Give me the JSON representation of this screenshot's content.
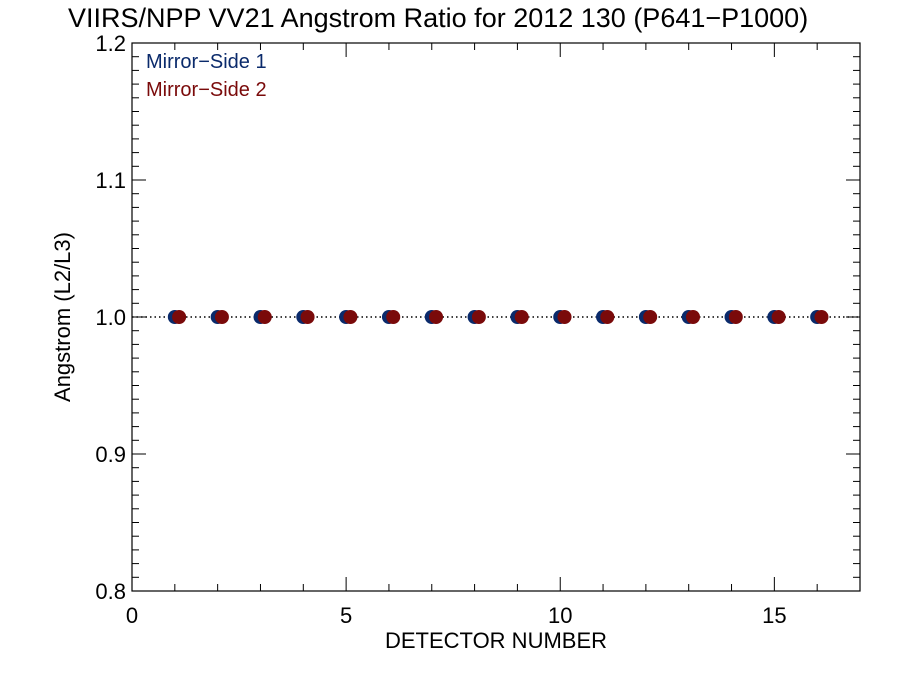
{
  "chart_data": {
    "type": "scatter",
    "title": "VIIRS/NPP VV21 Angstrom Ratio for 2012 130 (P641−P1000)",
    "xlabel": "DETECTOR NUMBER",
    "ylabel": "Angstrom (L2/L3)",
    "xlim": [
      0,
      17
    ],
    "ylim": [
      0.8,
      1.2
    ],
    "x_ticks": [
      0,
      5,
      10,
      15
    ],
    "x_tick_labels": [
      "0",
      "5",
      "10",
      "15"
    ],
    "y_ticks": [
      0.8,
      0.9,
      1.0,
      1.1,
      1.2
    ],
    "y_tick_labels": [
      "0.8",
      "0.9",
      "1.0",
      "1.1",
      "1.2"
    ],
    "reference_line": {
      "y": 1.0,
      "style": "dotted"
    },
    "legend_position": "top-left",
    "series": [
      {
        "name": "Mirror−Side 1",
        "color": "#0a2a6b",
        "x": [
          1,
          2,
          3,
          4,
          5,
          6,
          7,
          8,
          9,
          10,
          11,
          12,
          13,
          14,
          15,
          16
        ],
        "y": [
          1.0,
          1.0,
          1.0,
          1.0,
          1.0,
          1.0,
          1.0,
          1.0,
          1.0,
          1.0,
          1.0,
          1.0,
          1.0,
          1.0,
          1.0,
          1.0
        ]
      },
      {
        "name": "Mirror−Side 2",
        "color": "#7a0a0a",
        "x": [
          1.1,
          2.1,
          3.1,
          4.1,
          5.1,
          6.1,
          7.1,
          8.1,
          9.1,
          10.1,
          11.1,
          12.1,
          13.1,
          14.1,
          15.1,
          16.1
        ],
        "y": [
          1.0,
          1.0,
          1.0,
          1.0,
          1.0,
          1.0,
          1.0,
          1.0,
          1.0,
          1.0,
          1.0,
          1.0,
          1.0,
          1.0,
          1.0,
          1.0
        ]
      }
    ]
  }
}
